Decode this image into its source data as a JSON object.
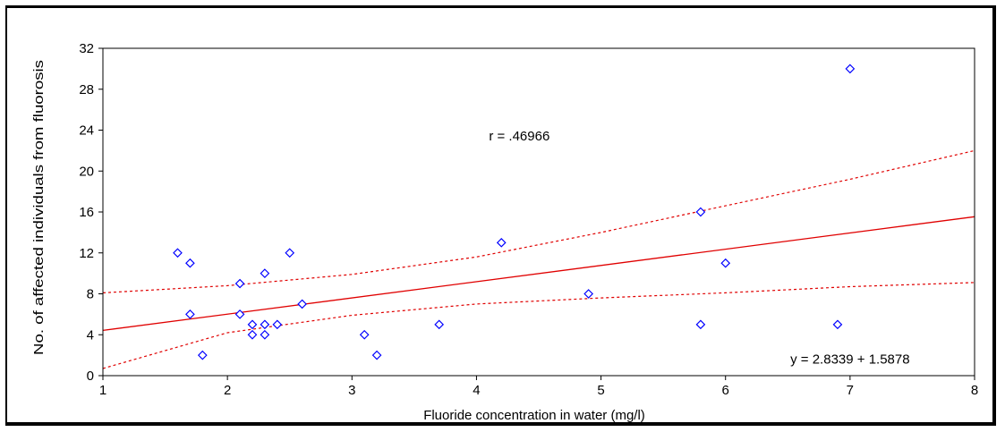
{
  "chart_data": {
    "type": "scatter",
    "title": "",
    "xlabel": "Fluoride concentration in water (mg/l)",
    "ylabel": "No. of affected individuals from fluorosis",
    "xlim": [
      1,
      8
    ],
    "ylim": [
      0,
      32
    ],
    "x_ticks": [
      "1",
      "2",
      "3",
      "4",
      "5",
      "6",
      "7",
      "8"
    ],
    "y_ticks": [
      "0",
      "4",
      "8",
      "12",
      "16",
      "20",
      "24",
      "28",
      "32"
    ],
    "grid": false,
    "points": [
      {
        "x": 1.6,
        "y": 12
      },
      {
        "x": 1.7,
        "y": 11
      },
      {
        "x": 1.7,
        "y": 6
      },
      {
        "x": 1.8,
        "y": 2
      },
      {
        "x": 2.1,
        "y": 9
      },
      {
        "x": 2.1,
        "y": 6
      },
      {
        "x": 2.2,
        "y": 5
      },
      {
        "x": 2.2,
        "y": 4
      },
      {
        "x": 2.3,
        "y": 10
      },
      {
        "x": 2.3,
        "y": 5
      },
      {
        "x": 2.3,
        "y": 4
      },
      {
        "x": 2.4,
        "y": 5
      },
      {
        "x": 2.5,
        "y": 12
      },
      {
        "x": 2.6,
        "y": 7
      },
      {
        "x": 3.1,
        "y": 4
      },
      {
        "x": 3.2,
        "y": 2
      },
      {
        "x": 3.7,
        "y": 5
      },
      {
        "x": 4.2,
        "y": 13
      },
      {
        "x": 4.9,
        "y": 8
      },
      {
        "x": 5.8,
        "y": 16
      },
      {
        "x": 5.8,
        "y": 5
      },
      {
        "x": 6.0,
        "y": 11
      },
      {
        "x": 6.9,
        "y": 5
      },
      {
        "x": 7.0,
        "y": 30
      }
    ],
    "regression": {
      "line": [
        [
          1,
          4.42
        ],
        [
          8,
          15.54
        ]
      ],
      "ci_upper": [
        [
          1,
          8.1
        ],
        [
          2,
          8.8
        ],
        [
          3,
          9.9
        ],
        [
          4,
          11.6
        ],
        [
          5,
          14.0
        ],
        [
          6,
          16.6
        ],
        [
          7,
          19.2
        ],
        [
          8,
          22.0
        ]
      ],
      "ci_lower": [
        [
          1,
          0.7
        ],
        [
          2,
          4.2
        ],
        [
          3,
          5.9
        ],
        [
          4,
          7.0
        ],
        [
          5,
          7.6
        ],
        [
          6,
          8.1
        ],
        [
          7,
          8.7
        ],
        [
          8,
          9.1
        ]
      ],
      "color": "#e00000"
    },
    "point_color": "#0000ff",
    "annotations": [
      {
        "text": "r = .46966",
        "x": 4.1,
        "y": 23
      },
      {
        "text": "y = 2.8339 + 1.5878",
        "x": 7.0,
        "y": 1.2
      }
    ]
  }
}
